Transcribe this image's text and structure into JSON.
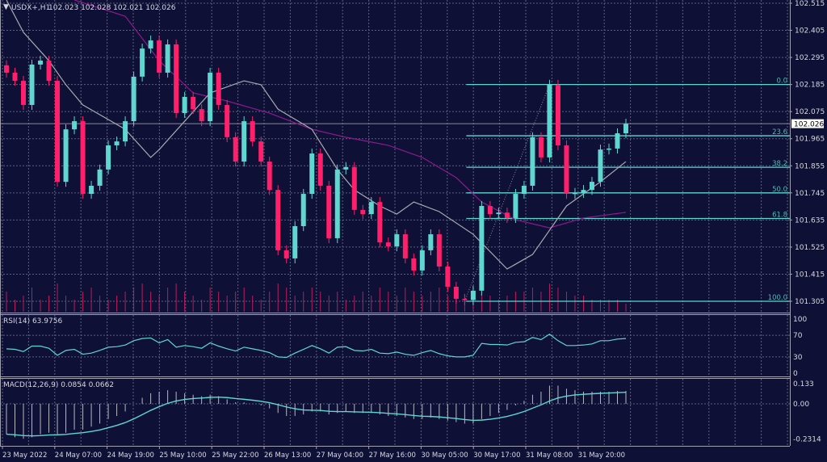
{
  "header": {
    "symbol": "USDX+,H1",
    "ohlc": "102.023 102.028 102.021 102.026"
  },
  "colors": {
    "background": "#0e1035",
    "bull": "#5fd6d0",
    "bear": "#ff1f6b",
    "ma_fast": "#a9a9b0",
    "ma_slow": "#8e1a8e",
    "fib": "#5fd6d0",
    "volume": "#c01a5c",
    "grid": "#5b5f80"
  },
  "chart_data": [
    {
      "type": "candlestick",
      "title": "USDX+,H1",
      "price_axis": {
        "ticks": [
          "102.515",
          "102.405",
          "102.295",
          "102.185",
          "102.075",
          "101.965",
          "101.855",
          "101.745",
          "101.635",
          "101.525",
          "101.415",
          "101.305"
        ],
        "ylim": [
          101.29,
          102.53
        ]
      },
      "current_price": "102.026",
      "time_axis": [
        "23 May 2022",
        "24 May 07:00",
        "24 May 19:00",
        "25 May 10:00",
        "25 May 22:00",
        "26 May 13:00",
        "27 May 04:00",
        "27 May 16:00",
        "30 May 05:00",
        "30 May 17:00",
        "31 May 08:00",
        "31 May 20:00"
      ],
      "close": [
        102.233,
        102.2,
        102.102,
        102.266,
        102.282,
        102.2,
        101.79,
        102.003,
        102.036,
        101.741,
        101.774,
        101.84,
        101.938,
        101.954,
        102.036,
        102.217,
        102.331,
        102.364,
        102.233,
        102.348,
        102.069,
        102.135,
        102.085,
        102.036,
        102.233,
        102.102,
        101.971,
        101.872,
        102.036,
        101.954,
        101.872,
        101.757,
        101.512,
        101.479,
        101.61,
        101.741,
        101.905,
        101.774,
        101.561,
        101.84,
        101.85,
        101.676,
        101.659,
        101.708,
        101.544,
        101.528,
        101.577,
        101.479,
        101.43,
        101.512,
        101.577,
        101.446,
        101.364,
        101.315,
        101.31,
        101.348,
        101.692,
        101.659,
        101.665,
        101.643,
        101.741,
        101.774,
        101.971,
        101.889,
        102.184,
        101.938,
        101.741,
        101.745,
        101.757,
        101.79,
        101.921,
        101.925,
        101.987,
        102.026
      ],
      "volume": [
        5,
        3,
        4,
        6,
        3,
        4,
        7,
        4,
        3,
        5,
        6,
        4,
        3,
        4,
        5,
        6,
        7,
        5,
        4,
        6,
        7,
        5,
        4,
        3,
        6,
        5,
        4,
        5,
        6,
        4,
        3,
        5,
        7,
        6,
        4,
        5,
        6,
        5,
        4,
        5,
        3,
        4,
        5,
        4,
        6,
        5,
        4,
        6,
        5,
        4,
        5,
        6,
        4,
        3,
        3,
        4,
        5,
        4,
        3,
        4,
        5,
        5,
        6,
        5,
        7,
        6,
        5,
        4,
        4,
        3,
        3,
        3,
        3,
        2
      ],
      "ma_fast": [
        [
          0,
          102.528
        ],
        [
          2,
          102.397
        ],
        [
          5,
          102.282
        ],
        [
          7,
          102.184
        ],
        [
          9,
          102.102
        ],
        [
          14,
          102.003
        ],
        [
          17,
          101.889
        ],
        [
          18,
          101.921
        ],
        [
          21,
          102.036
        ],
        [
          24,
          102.151
        ],
        [
          28,
          102.2
        ],
        [
          30,
          102.184
        ],
        [
          32,
          102.085
        ],
        [
          36,
          102.003
        ],
        [
          39,
          101.84
        ],
        [
          41,
          101.757
        ],
        [
          44,
          101.692
        ],
        [
          46,
          101.659
        ],
        [
          48,
          101.708
        ],
        [
          51,
          101.669
        ],
        [
          55,
          101.577
        ],
        [
          59,
          101.436
        ],
        [
          62,
          101.495
        ],
        [
          66,
          101.692
        ],
        [
          70,
          101.79
        ],
        [
          73,
          101.872
        ]
      ],
      "ma_slow": [
        [
          8,
          102.62
        ],
        [
          14,
          102.462
        ],
        [
          18,
          102.282
        ],
        [
          22,
          102.151
        ],
        [
          26,
          102.118
        ],
        [
          31,
          102.069
        ],
        [
          36,
          102.003
        ],
        [
          40,
          101.971
        ],
        [
          45,
          101.938
        ],
        [
          49,
          101.889
        ],
        [
          53,
          101.807
        ],
        [
          56,
          101.708
        ],
        [
          60,
          101.636
        ],
        [
          64,
          101.603
        ],
        [
          68,
          101.643
        ],
        [
          73,
          101.666
        ]
      ],
      "fibonacci": {
        "start_price": 101.305,
        "end_price": 102.185,
        "start_index": 54,
        "end_index": 64,
        "levels": [
          {
            "label": "0.0",
            "price": 102.185
          },
          {
            "label": "23.6",
            "price": 101.977
          },
          {
            "label": "38.2",
            "price": 101.849
          },
          {
            "label": "50.0",
            "price": 101.745
          },
          {
            "label": "61.8",
            "price": 101.641
          },
          {
            "label": "100.0",
            "price": 101.305
          }
        ]
      }
    },
    {
      "type": "line",
      "title": "RSI(14) 63.9756",
      "ylim": [
        0,
        100
      ],
      "ticks": [
        "100",
        "70",
        "30",
        "0"
      ],
      "values": [
        45,
        44,
        40,
        50,
        50,
        46,
        33,
        42,
        44,
        35,
        37,
        42,
        48,
        49,
        52,
        60,
        64,
        65,
        56,
        62,
        48,
        51,
        49,
        46,
        56,
        50,
        45,
        41,
        48,
        45,
        42,
        38,
        30,
        29,
        37,
        44,
        51,
        45,
        37,
        48,
        49,
        42,
        41,
        44,
        37,
        36,
        39,
        35,
        33,
        38,
        42,
        36,
        32,
        30,
        30,
        33,
        55,
        53,
        53,
        52,
        57,
        58,
        66,
        62,
        72,
        60,
        51,
        51,
        52,
        54,
        60,
        60,
        63,
        64
      ]
    },
    {
      "type": "bar+line",
      "title": "MACD(12,26,9) 0.0854 0.0662",
      "ylim": [
        -0.2314,
        0.133
      ],
      "ticks": [
        "0.133",
        "0.00",
        "-0.2314"
      ],
      "main": [
        -0.2,
        -0.22,
        -0.23,
        -0.22,
        -0.2,
        -0.19,
        -0.2,
        -0.19,
        -0.17,
        -0.17,
        -0.15,
        -0.13,
        -0.1,
        -0.08,
        -0.05,
        0.0,
        0.04,
        0.07,
        0.08,
        0.09,
        0.08,
        0.07,
        0.06,
        0.05,
        0.06,
        0.05,
        0.03,
        0.01,
        0.01,
        0.0,
        -0.01,
        -0.03,
        -0.06,
        -0.08,
        -0.08,
        -0.07,
        -0.05,
        -0.05,
        -0.07,
        -0.06,
        -0.05,
        -0.06,
        -0.06,
        -0.06,
        -0.07,
        -0.08,
        -0.08,
        -0.09,
        -0.1,
        -0.1,
        -0.09,
        -0.1,
        -0.11,
        -0.12,
        -0.13,
        -0.13,
        -0.1,
        -0.08,
        -0.06,
        -0.04,
        -0.01,
        0.02,
        0.06,
        0.08,
        0.12,
        0.12,
        0.1,
        0.09,
        0.08,
        0.08,
        0.08,
        0.08,
        0.085,
        0.0854
      ]
    }
  ]
}
